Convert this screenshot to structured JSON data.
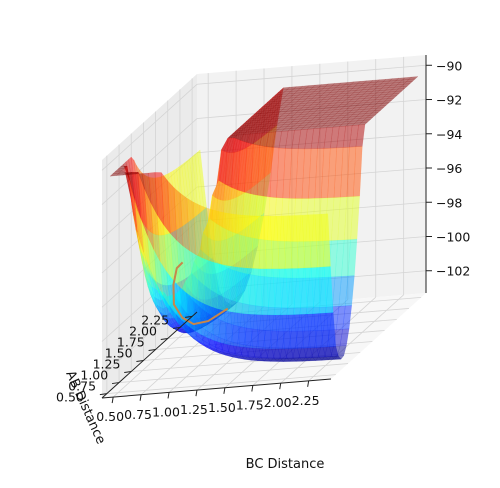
{
  "chart_data": {
    "type": "surface3d",
    "description_of_axes": {
      "x_label": "BC Distance",
      "y_label": "AB Distance",
      "z_label": ""
    },
    "x_ticks": [
      "0.50",
      "0.75",
      "1.00",
      "1.25",
      "1.50",
      "1.75",
      "2.00",
      "2.25"
    ],
    "y_ticks": [
      "0.50",
      "0.75",
      "1.00",
      "1.25",
      "1.50",
      "1.75",
      "2.00",
      "2.25"
    ],
    "z_ticks": [
      "−90",
      "−92",
      "−94",
      "−96",
      "−98",
      "−100",
      "−102"
    ],
    "z_tick_values": [
      -90,
      -92,
      -94,
      -96,
      -98,
      -100,
      -102
    ],
    "xlim": [
      0.4,
      2.45
    ],
    "ylim": [
      0.4,
      2.35
    ],
    "zlim": [
      -103.3,
      -89.4
    ],
    "surface": {
      "colormap": "jet",
      "alpha": 0.5,
      "clip_level": -90.5,
      "min_energy": -103.0,
      "equilibrium_distance": 0.74
    },
    "trajectory": {
      "color": "#c8864a",
      "points": [
        [
          0.74,
          2.2,
          -102.9
        ],
        [
          0.74,
          1.8,
          -102.6
        ],
        [
          0.74,
          1.5,
          -102.0
        ],
        [
          0.75,
          1.25,
          -101.0
        ],
        [
          0.76,
          1.05,
          -99.7
        ],
        [
          0.8,
          0.95,
          -98.3
        ],
        [
          0.86,
          0.88,
          -97.2
        ],
        [
          0.93,
          0.84,
          -96.8
        ]
      ]
    },
    "grid": true
  }
}
